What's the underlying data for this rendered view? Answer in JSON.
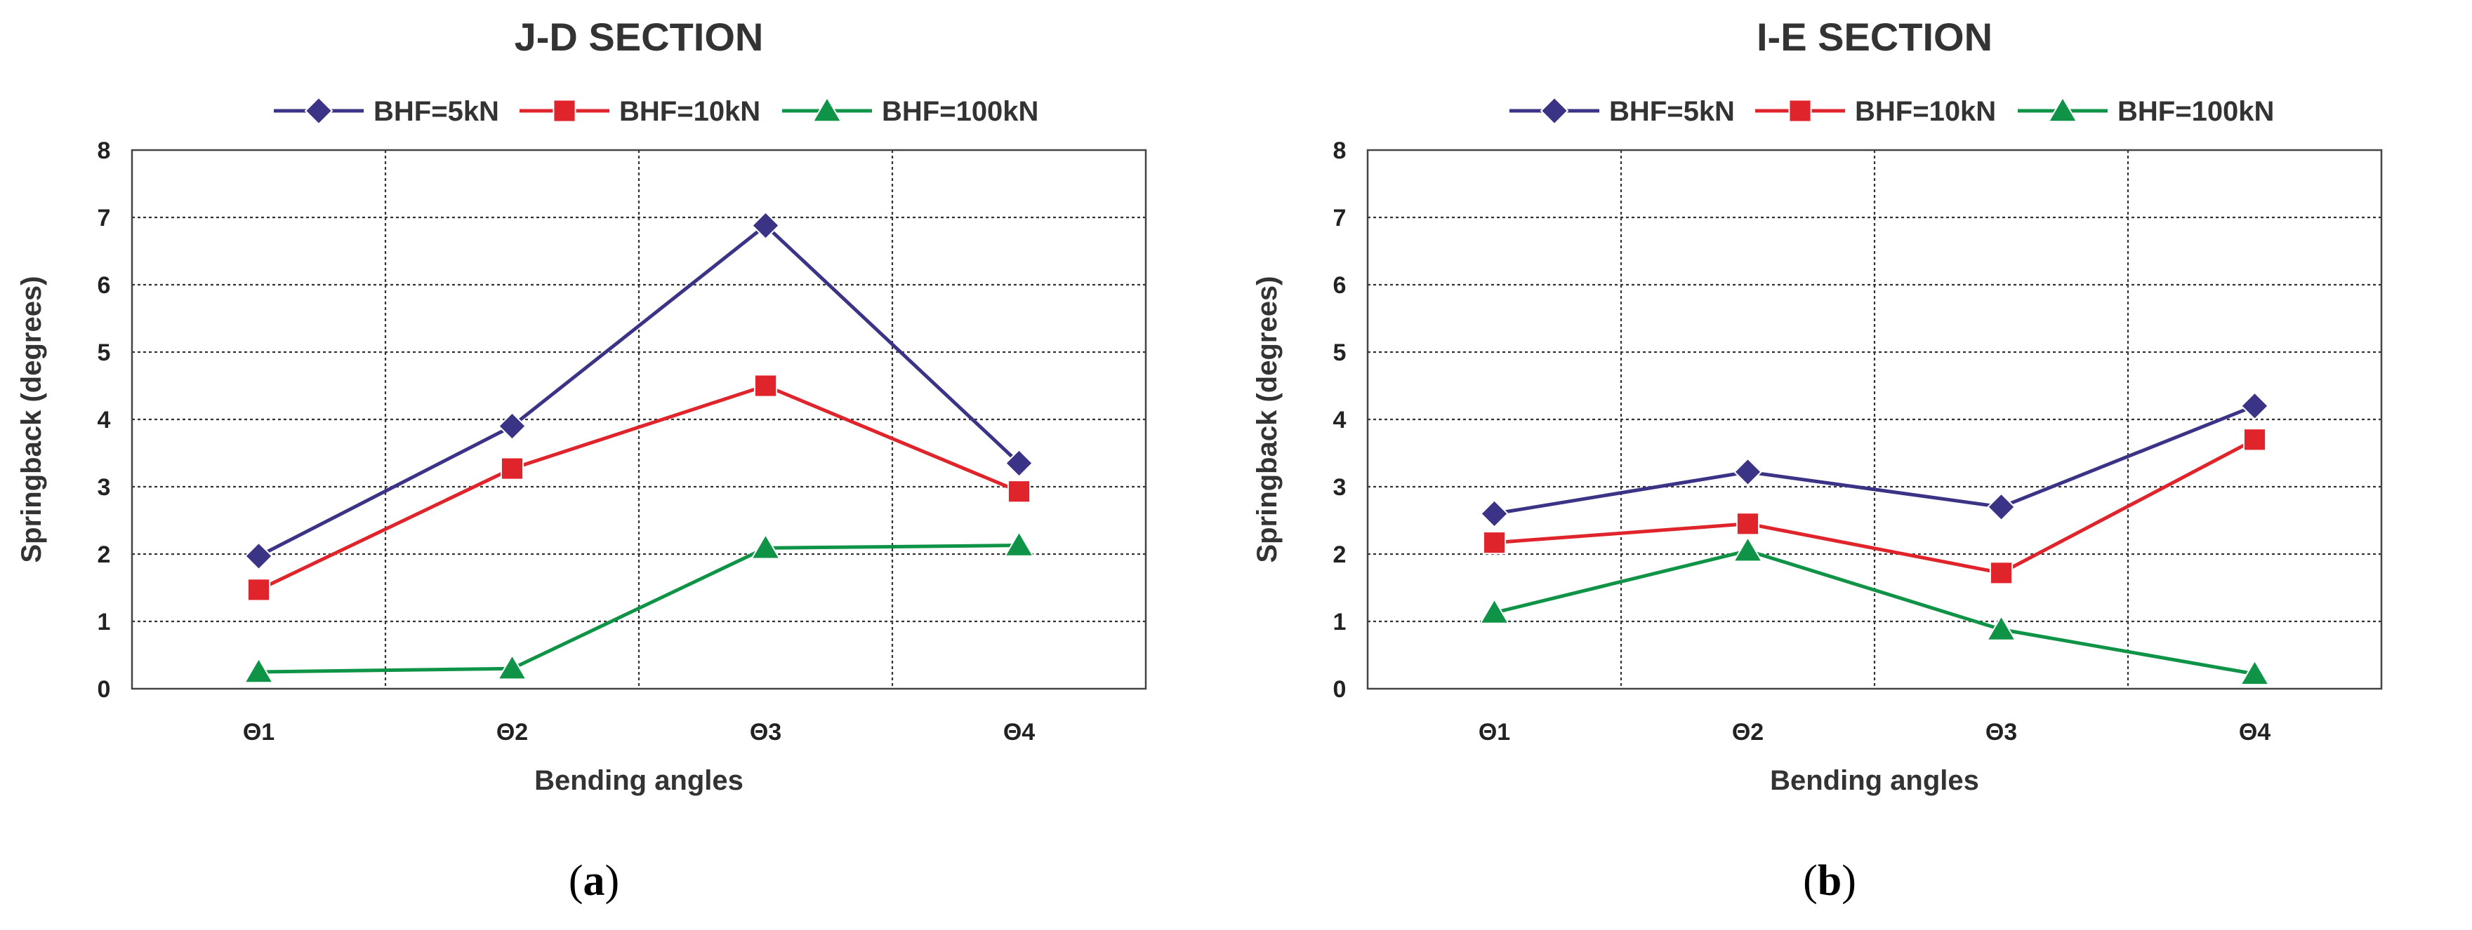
{
  "chart_data": [
    {
      "type": "line",
      "title": "J-D SECTION",
      "caption": "a",
      "xlabel": "Bending angles",
      "ylabel": "Springback (degrees)",
      "categories": [
        "Θ1",
        "Θ2",
        "Θ3",
        "Θ4"
      ],
      "ylim": [
        0,
        8
      ],
      "yticks": [
        0,
        1,
        2,
        3,
        4,
        5,
        6,
        7,
        8
      ],
      "grid": true,
      "legend_position": "top-center",
      "series": [
        {
          "name": "BHF=5kN",
          "color": "#3b3486",
          "marker": "diamond",
          "values": [
            1.97,
            3.9,
            6.88,
            3.35
          ]
        },
        {
          "name": "BHF=10kN",
          "color": "#e0242b",
          "marker": "square",
          "values": [
            1.47,
            3.27,
            4.5,
            2.93
          ]
        },
        {
          "name": "BHF=100kN",
          "color": "#0f9347",
          "marker": "triangle",
          "values": [
            0.25,
            0.3,
            2.09,
            2.13
          ]
        }
      ]
    },
    {
      "type": "line",
      "title": "I-E SECTION",
      "caption": "b",
      "xlabel": "Bending angles",
      "ylabel": "Springback (degrees)",
      "categories": [
        "Θ1",
        "Θ2",
        "Θ3",
        "Θ4"
      ],
      "ylim": [
        0,
        8
      ],
      "yticks": [
        0,
        1,
        2,
        3,
        4,
        5,
        6,
        7,
        8
      ],
      "grid": true,
      "legend_position": "top-center",
      "series": [
        {
          "name": "BHF=5kN",
          "color": "#3b3486",
          "marker": "diamond",
          "values": [
            2.6,
            3.22,
            2.7,
            4.2
          ]
        },
        {
          "name": "BHF=10kN",
          "color": "#e0242b",
          "marker": "square",
          "values": [
            2.17,
            2.45,
            1.72,
            3.7
          ]
        },
        {
          "name": "BHF=100kN",
          "color": "#0f9347",
          "marker": "triangle",
          "values": [
            1.13,
            2.05,
            0.88,
            0.22
          ]
        }
      ]
    }
  ]
}
